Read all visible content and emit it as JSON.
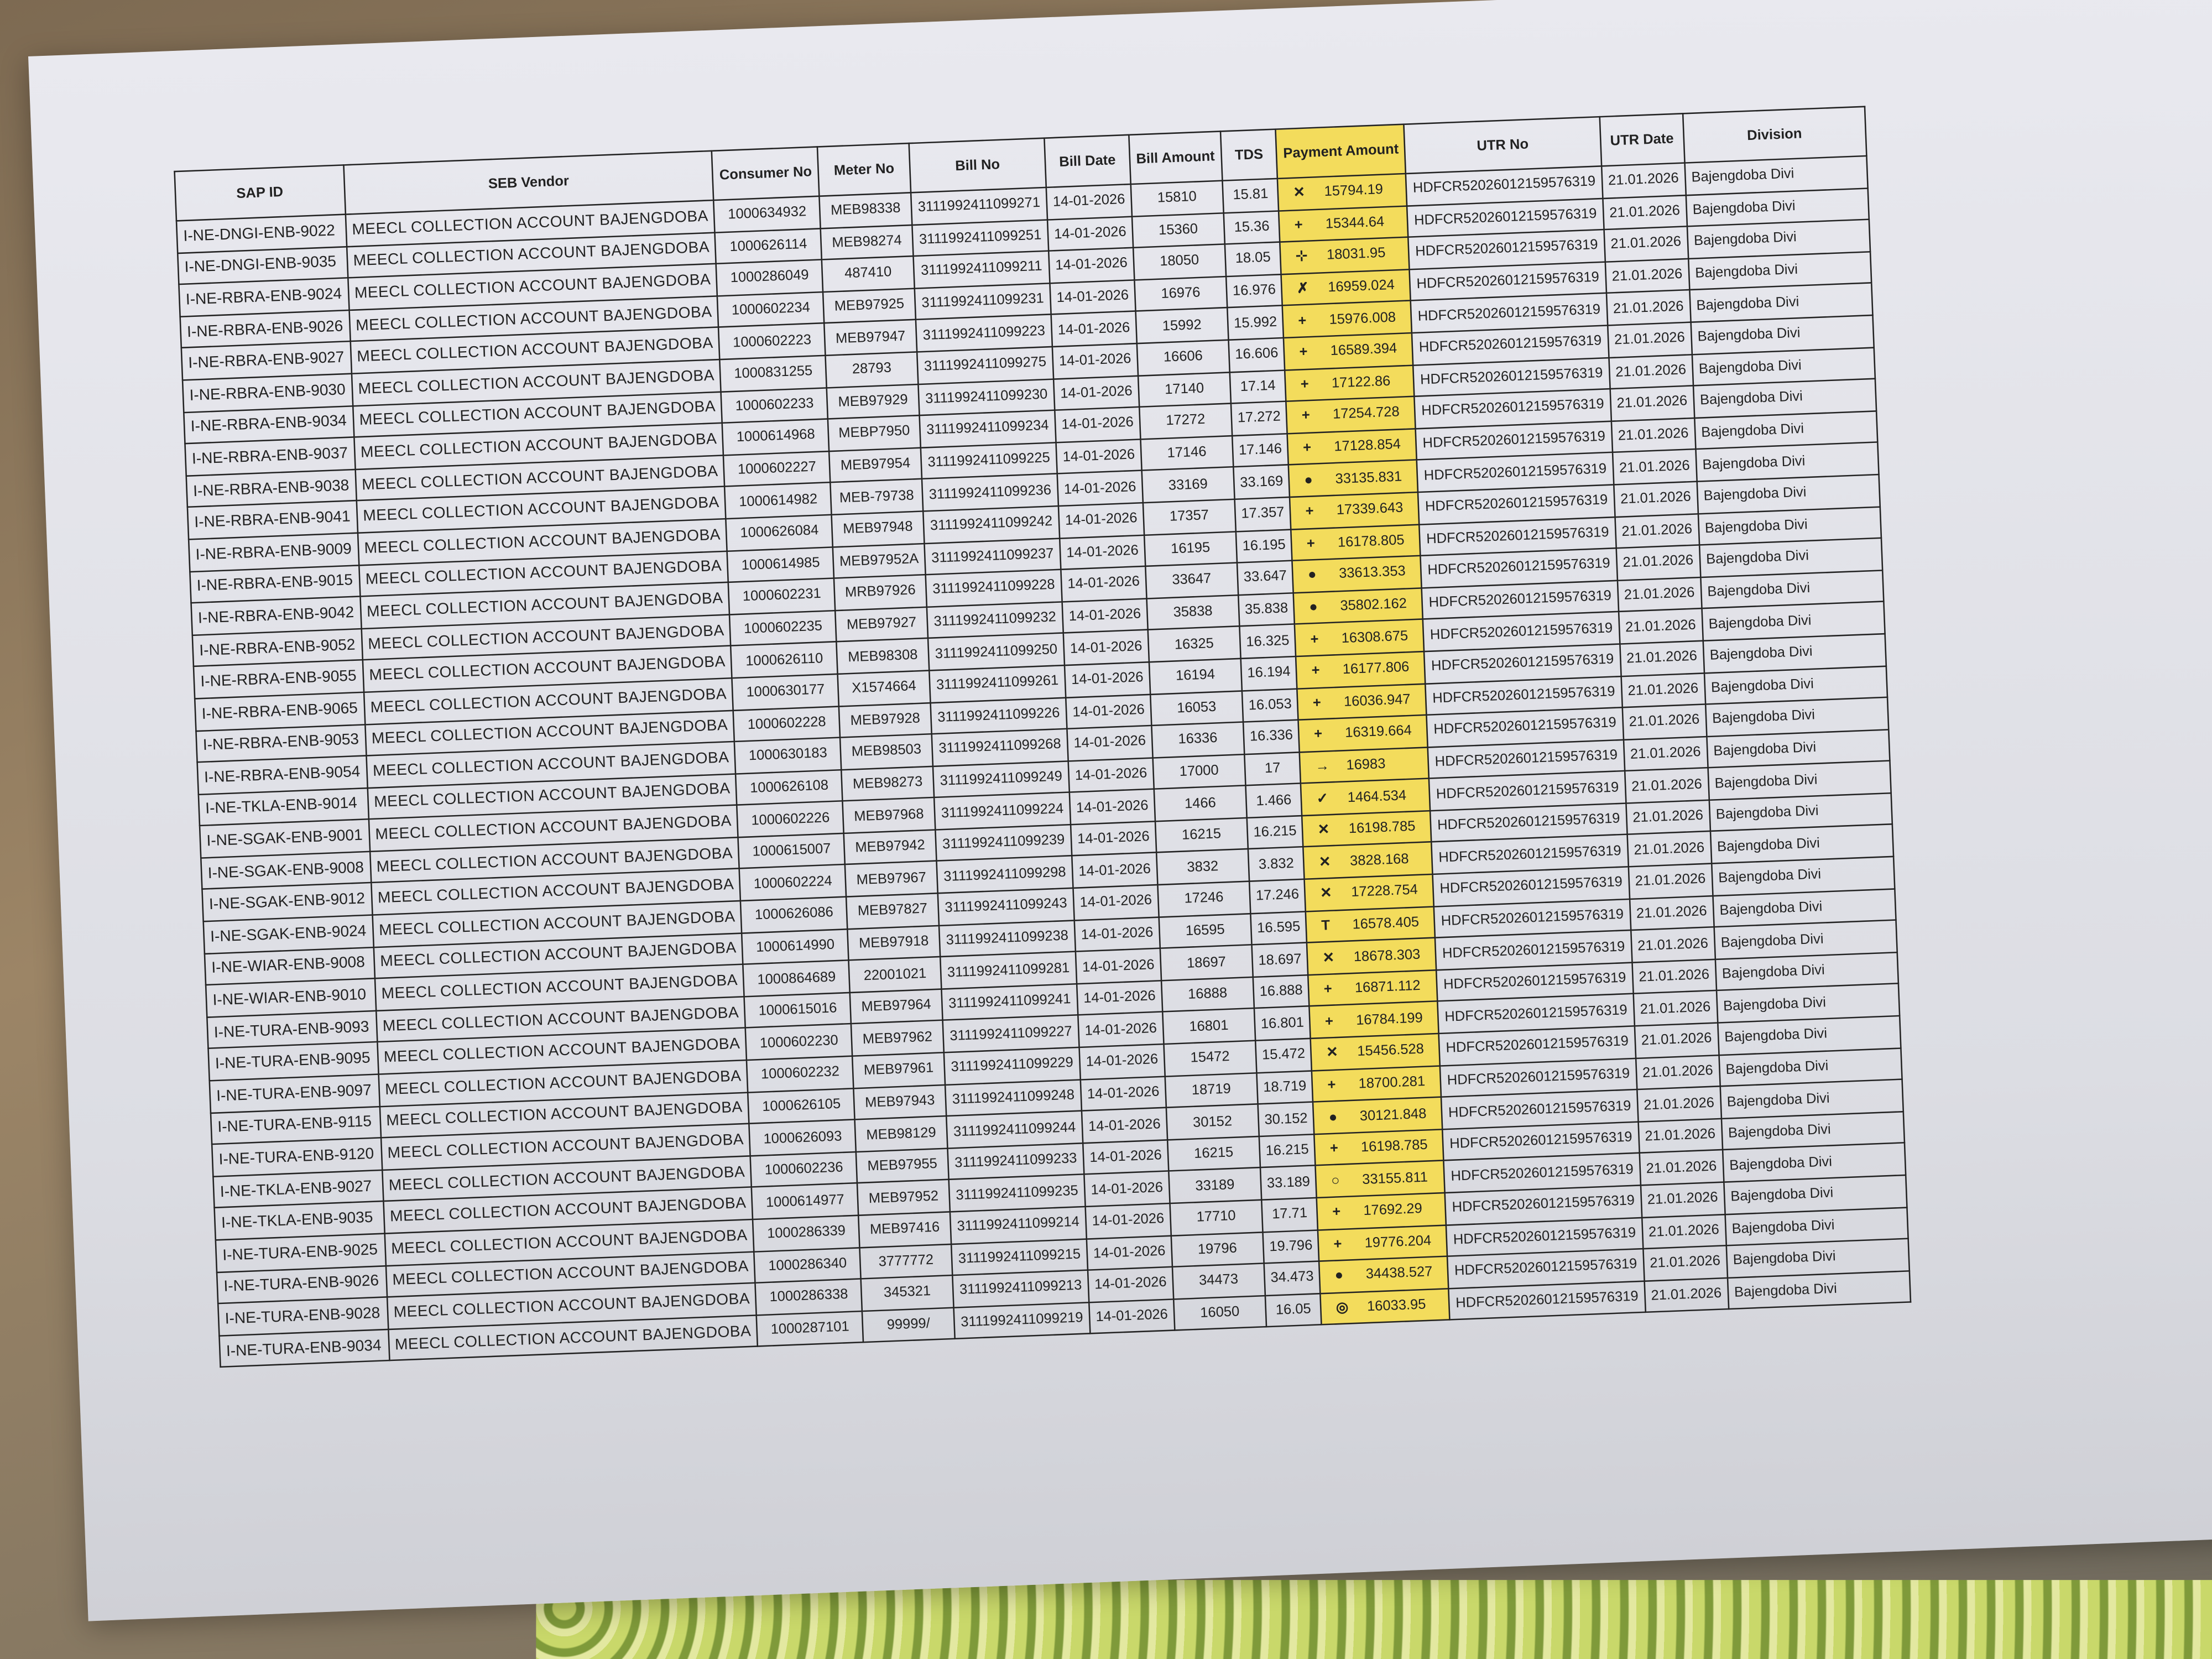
{
  "table": {
    "headers": [
      "SAP ID",
      "SEB Vendor",
      "Consumer No",
      "Meter No",
      "Bill No",
      "Bill Date",
      "Bill Amount",
      "TDS",
      "Payment Amount",
      "UTR No",
      "UTR Date",
      "Division"
    ],
    "vendor": "MEECL COLLECTION ACCOUNT BAJENGDOBA",
    "bill_date": "14-01-2026",
    "utr_no": "HDFCR52026012159576319",
    "utr_date": "21.01.2026",
    "division": "Bajengdoba Divi",
    "highlight_color": "#f3dc5c",
    "rows": [
      [
        "I-NE-DNGI-ENB-9022",
        "1000634932",
        "MEB98338",
        "3111992411099271",
        "15810",
        "15.81",
        "15794.19"
      ],
      [
        "I-NE-DNGI-ENB-9035",
        "1000626114",
        "MEB98274",
        "3111992411099251",
        "15360",
        "15.36",
        "15344.64"
      ],
      [
        "I-NE-RBRA-ENB-9024",
        "1000286049",
        "487410",
        "3111992411099211",
        "18050",
        "18.05",
        "18031.95"
      ],
      [
        "I-NE-RBRA-ENB-9026",
        "1000602234",
        "MEB97925",
        "3111992411099231",
        "16976",
        "16.976",
        "16959.024"
      ],
      [
        "I-NE-RBRA-ENB-9027",
        "1000602223",
        "MEB97947",
        "3111992411099223",
        "15992",
        "15.992",
        "15976.008"
      ],
      [
        "I-NE-RBRA-ENB-9030",
        "1000831255",
        "28793",
        "3111992411099275",
        "16606",
        "16.606",
        "16589.394"
      ],
      [
        "I-NE-RBRA-ENB-9034",
        "1000602233",
        "MEB97929",
        "3111992411099230",
        "17140",
        "17.14",
        "17122.86"
      ],
      [
        "I-NE-RBRA-ENB-9037",
        "1000614968",
        "MEBP7950",
        "3111992411099234",
        "17272",
        "17.272",
        "17254.728"
      ],
      [
        "I-NE-RBRA-ENB-9038",
        "1000602227",
        "MEB97954",
        "3111992411099225",
        "17146",
        "17.146",
        "17128.854"
      ],
      [
        "I-NE-RBRA-ENB-9041",
        "1000614982",
        "MEB-79738",
        "3111992411099236",
        "33169",
        "33.169",
        "33135.831"
      ],
      [
        "I-NE-RBRA-ENB-9009",
        "1000626084",
        "MEB97948",
        "3111992411099242",
        "17357",
        "17.357",
        "17339.643"
      ],
      [
        "I-NE-RBRA-ENB-9015",
        "1000614985",
        "MEB97952A",
        "3111992411099237",
        "16195",
        "16.195",
        "16178.805"
      ],
      [
        "I-NE-RBRA-ENB-9042",
        "1000602231",
        "MRB97926",
        "3111992411099228",
        "33647",
        "33.647",
        "33613.353"
      ],
      [
        "I-NE-RBRA-ENB-9052",
        "1000602235",
        "MEB97927",
        "3111992411099232",
        "35838",
        "35.838",
        "35802.162"
      ],
      [
        "I-NE-RBRA-ENB-9055",
        "1000626110",
        "MEB98308",
        "3111992411099250",
        "16325",
        "16.325",
        "16308.675"
      ],
      [
        "I-NE-RBRA-ENB-9065",
        "1000630177",
        "X1574664",
        "3111992411099261",
        "16194",
        "16.194",
        "16177.806"
      ],
      [
        "I-NE-RBRA-ENB-9053",
        "1000602228",
        "MEB97928",
        "3111992411099226",
        "16053",
        "16.053",
        "16036.947"
      ],
      [
        "I-NE-RBRA-ENB-9054",
        "1000630183",
        "MEB98503",
        "3111992411099268",
        "16336",
        "16.336",
        "16319.664"
      ],
      [
        "I-NE-TKLA-ENB-9014",
        "1000626108",
        "MEB98273",
        "3111992411099249",
        "17000",
        "17",
        "16983"
      ],
      [
        "I-NE-SGAK-ENB-9001",
        "1000602226",
        "MEB97968",
        "3111992411099224",
        "1466",
        "1.466",
        "1464.534"
      ],
      [
        "I-NE-SGAK-ENB-9008",
        "1000615007",
        "MEB97942",
        "3111992411099239",
        "16215",
        "16.215",
        "16198.785"
      ],
      [
        "I-NE-SGAK-ENB-9012",
        "1000602224",
        "MEB97967",
        "3111992411099298",
        "3832",
        "3.832",
        "3828.168"
      ],
      [
        "I-NE-SGAK-ENB-9024",
        "1000626086",
        "MEB97827",
        "3111992411099243",
        "17246",
        "17.246",
        "17228.754"
      ],
      [
        "I-NE-WIAR-ENB-9008",
        "1000614990",
        "MEB97918",
        "3111992411099238",
        "16595",
        "16.595",
        "16578.405"
      ],
      [
        "I-NE-WIAR-ENB-9010",
        "1000864689",
        "22001021",
        "3111992411099281",
        "18697",
        "18.697",
        "18678.303"
      ],
      [
        "I-NE-TURA-ENB-9093",
        "1000615016",
        "MEB97964",
        "3111992411099241",
        "16888",
        "16.888",
        "16871.112"
      ],
      [
        "I-NE-TURA-ENB-9095",
        "1000602230",
        "MEB97962",
        "3111992411099227",
        "16801",
        "16.801",
        "16784.199"
      ],
      [
        "I-NE-TURA-ENB-9097",
        "1000602232",
        "MEB97961",
        "3111992411099229",
        "15472",
        "15.472",
        "15456.528"
      ],
      [
        "I-NE-TURA-ENB-9115",
        "1000626105",
        "MEB97943",
        "3111992411099248",
        "18719",
        "18.719",
        "18700.281"
      ],
      [
        "I-NE-TURA-ENB-9120",
        "1000626093",
        "MEB98129",
        "3111992411099244",
        "30152",
        "30.152",
        "30121.848"
      ],
      [
        "I-NE-TKLA-ENB-9027",
        "1000602236",
        "MEB97955",
        "3111992411099233",
        "16215",
        "16.215",
        "16198.785"
      ],
      [
        "I-NE-TKLA-ENB-9035",
        "1000614977",
        "MEB97952",
        "3111992411099235",
        "33189",
        "33.189",
        "33155.811"
      ],
      [
        "I-NE-TURA-ENB-9025",
        "1000286339",
        "MEB97416",
        "3111992411099214",
        "17710",
        "17.71",
        "17692.29"
      ],
      [
        "I-NE-TURA-ENB-9026",
        "1000286340",
        "3777772",
        "3111992411099215",
        "19796",
        "19.796",
        "19776.204"
      ],
      [
        "I-NE-TURA-ENB-9028",
        "1000286338",
        "345321",
        "3111992411099213",
        "34473",
        "34.473",
        "34438.527"
      ],
      [
        "I-NE-TURA-ENB-9034",
        "1000287101",
        "99999/",
        "3111992411099219",
        "16050",
        "16.05",
        "16033.95"
      ]
    ]
  }
}
